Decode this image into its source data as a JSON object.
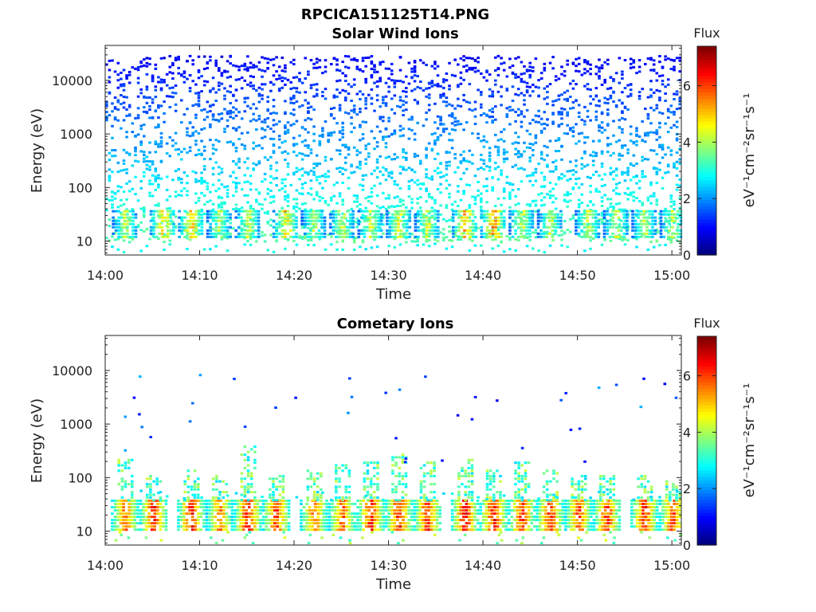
{
  "figure": {
    "title": "RPCICA151125T14.PNG"
  },
  "colorbar": {
    "label": "Flux",
    "unit_label": "eV⁻¹cm⁻²sr⁻¹s⁻¹",
    "ticks": [
      "0",
      "2",
      "4",
      "6"
    ],
    "range": [
      0,
      7.4
    ],
    "colormap": "jet"
  },
  "chart_data": [
    {
      "type": "heatmap",
      "title": "Solar Wind Ions",
      "xlabel": "Time",
      "ylabel": "Energy (eV)",
      "x_ticks": [
        "14:00",
        "14:10",
        "14:20",
        "14:30",
        "14:40",
        "14:50",
        "15:00"
      ],
      "y_ticks": [
        "10",
        "100",
        "1000",
        "10000"
      ],
      "xlim": [
        "14:00",
        "15:01"
      ],
      "ylim": [
        5.5,
        45000
      ],
      "yscale": "log",
      "grid": false,
      "colorbar_label": "Flux",
      "background_noise": {
        "energy_range": [
          10,
          30000
        ],
        "typical_flux": [
          0.8,
          3.5
        ]
      },
      "bursts": [
        {
          "time": "14:02",
          "flux_peak": 4.8
        },
        {
          "time": "14:06",
          "flux_peak": 5.8
        },
        {
          "time": "14:09",
          "flux_peak": 5.8
        },
        {
          "time": "14:12",
          "flux_peak": 4.6
        },
        {
          "time": "14:15",
          "flux_peak": 4.9
        },
        {
          "time": "14:19",
          "flux_peak": 5.8
        },
        {
          "time": "14:22",
          "flux_peak": 4.6
        },
        {
          "time": "14:25",
          "flux_peak": 4.9
        },
        {
          "time": "14:28",
          "flux_peak": 5.0
        },
        {
          "time": "14:31",
          "flux_peak": 5.2
        },
        {
          "time": "14:34",
          "flux_peak": 5.0
        },
        {
          "time": "14:38",
          "flux_peak": 6.0
        },
        {
          "time": "14:41",
          "flux_peak": 6.3
        },
        {
          "time": "14:44",
          "flux_peak": 5.0
        },
        {
          "time": "14:47",
          "flux_peak": 4.8
        },
        {
          "time": "14:51",
          "flux_peak": 4.9
        },
        {
          "time": "14:54",
          "flux_peak": 5.0
        },
        {
          "time": "14:57",
          "flux_peak": 4.8
        },
        {
          "time": "15:00",
          "flux_peak": 4.9
        }
      ]
    },
    {
      "type": "heatmap",
      "title": "Cometary Ions",
      "xlabel": "Time",
      "ylabel": "Energy (eV)",
      "x_ticks": [
        "14:00",
        "14:10",
        "14:20",
        "14:30",
        "14:40",
        "14:50",
        "15:00"
      ],
      "y_ticks": [
        "10",
        "100",
        "1000",
        "10000"
      ],
      "xlim": [
        "14:00",
        "15:01"
      ],
      "ylim": [
        5.5,
        45000
      ],
      "yscale": "log",
      "grid": false,
      "colorbar_label": "Flux",
      "bursts": [
        {
          "time": "14:02",
          "flux_peak": 6.5,
          "max_energy": 250
        },
        {
          "time": "14:05",
          "flux_peak": 7.0,
          "max_energy": 120
        },
        {
          "time": "14:09",
          "flux_peak": 7.1,
          "max_energy": 150
        },
        {
          "time": "14:12",
          "flux_peak": 6.2,
          "max_energy": 120
        },
        {
          "time": "14:15",
          "flux_peak": 7.2,
          "max_energy": 400
        },
        {
          "time": "14:18",
          "flux_peak": 6.8,
          "max_energy": 120
        },
        {
          "time": "14:22",
          "flux_peak": 6.5,
          "max_energy": 150
        },
        {
          "time": "14:25",
          "flux_peak": 6.6,
          "max_energy": 180
        },
        {
          "time": "14:28",
          "flux_peak": 7.0,
          "max_energy": 200
        },
        {
          "time": "14:31",
          "flux_peak": 7.1,
          "max_energy": 300
        },
        {
          "time": "14:34",
          "flux_peak": 7.0,
          "max_energy": 200
        },
        {
          "time": "14:38",
          "flux_peak": 7.3,
          "max_energy": 250
        },
        {
          "time": "14:41",
          "flux_peak": 7.2,
          "max_energy": 150
        },
        {
          "time": "14:44",
          "flux_peak": 6.9,
          "max_energy": 200
        },
        {
          "time": "14:47",
          "flux_peak": 7.0,
          "max_energy": 150
        },
        {
          "time": "14:50",
          "flux_peak": 6.7,
          "max_energy": 120
        },
        {
          "time": "14:53",
          "flux_peak": 6.8,
          "max_energy": 120
        },
        {
          "time": "14:57",
          "flux_peak": 6.9,
          "max_energy": 120
        },
        {
          "time": "15:00",
          "flux_peak": 6.8,
          "max_energy": 100
        }
      ],
      "sparse_points_energy_range": [
        200,
        11000
      ]
    }
  ]
}
